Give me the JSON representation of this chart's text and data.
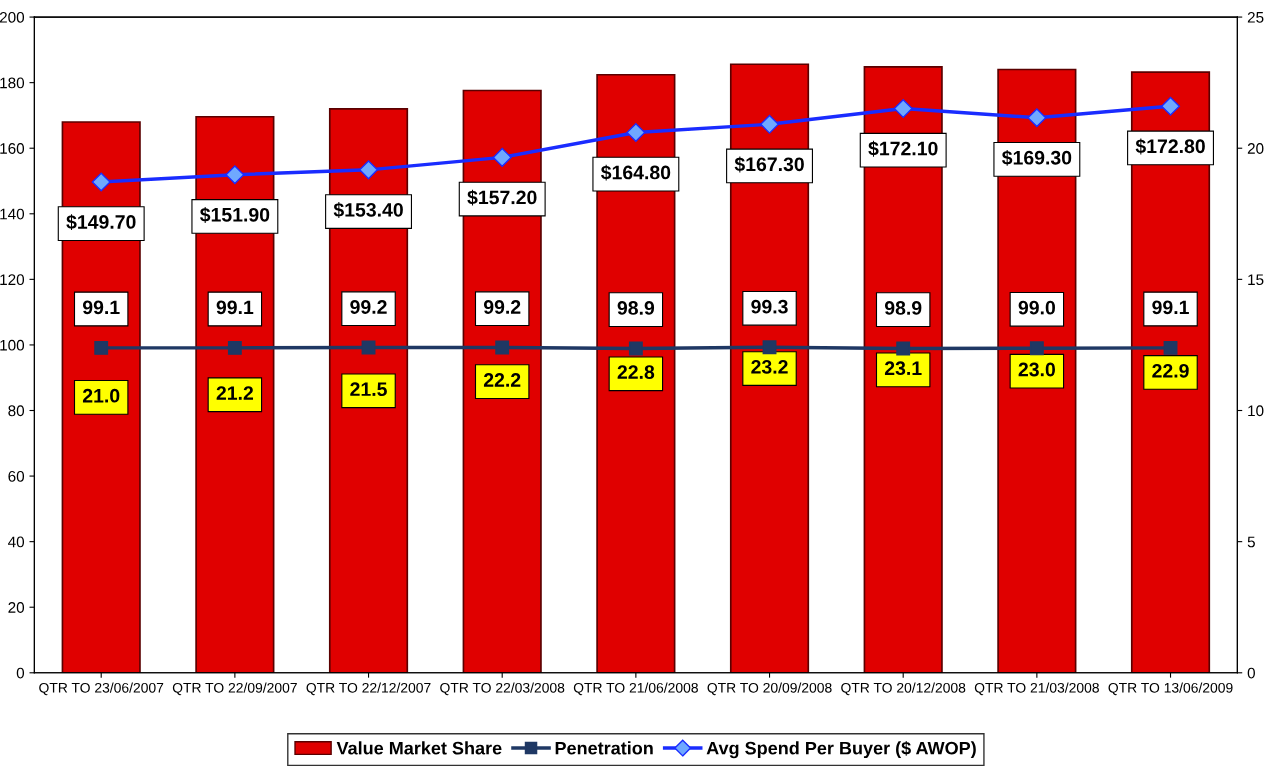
{
  "chart_data": {
    "type": "bar",
    "categories": [
      "QTR TO 23/06/2007",
      "QTR TO 22/09/2007",
      "QTR TO 22/12/2007",
      "QTR TO 22/03/2008",
      "QTR TO 21/06/2008",
      "QTR TO 20/09/2008",
      "QTR TO 20/12/2008",
      "QTR TO 21/03/2008",
      "QTR TO 13/06/2009"
    ],
    "series": [
      {
        "name": "Value Market Share",
        "axis": "y2",
        "color": "#e00000",
        "values": [
          21.0,
          21.2,
          21.5,
          22.2,
          22.8,
          23.2,
          23.1,
          23.0,
          22.9
        ],
        "value_labels": [
          "21.0",
          "21.2",
          "21.5",
          "22.2",
          "22.8",
          "23.2",
          "23.1",
          "23.0",
          "22.9"
        ]
      },
      {
        "name": "Penetration",
        "type": "line",
        "axis": "y",
        "color": "#1f3864",
        "marker": "square",
        "values": [
          99.1,
          99.1,
          99.2,
          99.2,
          98.9,
          99.3,
          98.9,
          99.0,
          99.1
        ],
        "value_labels": [
          "99.1",
          "99.1",
          "99.2",
          "99.2",
          "98.9",
          "99.3",
          "98.9",
          "99.0",
          "99.1"
        ]
      },
      {
        "name": "Avg Spend Per Buyer ($ AWOP)",
        "type": "line",
        "axis": "y",
        "color": "#1a2cff",
        "marker": "diamond",
        "values": [
          149.7,
          151.9,
          153.4,
          157.2,
          164.8,
          167.3,
          172.1,
          169.3,
          172.8
        ],
        "value_labels": [
          "$149.70",
          "$151.90",
          "$153.40",
          "$157.20",
          "$164.80",
          "$167.30",
          "$172.10",
          "$169.30",
          "$172.80"
        ]
      }
    ],
    "ylim": [
      0,
      200
    ],
    "yticks": [
      0,
      20,
      40,
      60,
      80,
      100,
      120,
      140,
      160,
      180,
      200
    ],
    "y2lim": [
      0,
      25
    ],
    "y2ticks": [
      0,
      5,
      10,
      15,
      20,
      25
    ],
    "legend": "bottom",
    "grid": false
  }
}
